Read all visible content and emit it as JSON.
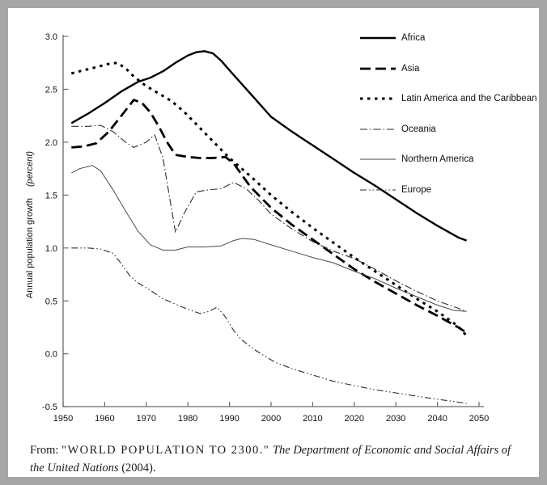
{
  "frame": {
    "border_color": "#a6a6a6",
    "background": "#ffffff"
  },
  "y_axis_title": {
    "main": "Annual population growth",
    "unit": "(percent)"
  },
  "footer": {
    "from_label": "From:",
    "title": "\"WORLD POPULATION TO 2300.\"",
    "source": "The Department of Economic and Social Affairs of the United Nations",
    "year": "(2004)."
  },
  "chart_data": {
    "type": "line",
    "title": "",
    "xlabel": "",
    "ylabel": "Annual population growth (percent)",
    "xlim": [
      1950,
      2050
    ],
    "ylim": [
      -0.5,
      3.0
    ],
    "x_ticks": [
      1950,
      1960,
      1970,
      1980,
      1990,
      2000,
      2010,
      2020,
      2030,
      2040,
      2050
    ],
    "y_ticks": [
      3.0,
      2.5,
      2.0,
      1.5,
      1.0,
      0.5,
      0.0,
      -0.5
    ],
    "grid": false,
    "legend_position": "top-right",
    "axis_color": "#6b6b6b",
    "series": [
      {
        "name": "Africa",
        "color": "#000000",
        "width": 2.4,
        "dash": "",
        "points": [
          [
            1952,
            2.18
          ],
          [
            1956,
            2.27
          ],
          [
            1960,
            2.37
          ],
          [
            1964,
            2.48
          ],
          [
            1968,
            2.57
          ],
          [
            1971,
            2.61
          ],
          [
            1974,
            2.67
          ],
          [
            1977,
            2.75
          ],
          [
            1980,
            2.82
          ],
          [
            1982,
            2.85
          ],
          [
            1984,
            2.86
          ],
          [
            1986,
            2.84
          ],
          [
            1988,
            2.77
          ],
          [
            1990,
            2.68
          ],
          [
            1995,
            2.46
          ],
          [
            2000,
            2.24
          ],
          [
            2005,
            2.1
          ],
          [
            2010,
            1.97
          ],
          [
            2015,
            1.84
          ],
          [
            2020,
            1.71
          ],
          [
            2025,
            1.59
          ],
          [
            2030,
            1.46
          ],
          [
            2035,
            1.33
          ],
          [
            2040,
            1.21
          ],
          [
            2045,
            1.1
          ],
          [
            2047,
            1.07
          ]
        ]
      },
      {
        "name": "Asia",
        "color": "#000000",
        "width": 2.8,
        "dash": "13 6",
        "points": [
          [
            1952,
            1.95
          ],
          [
            1955,
            1.96
          ],
          [
            1958,
            1.99
          ],
          [
            1961,
            2.1
          ],
          [
            1964,
            2.25
          ],
          [
            1967,
            2.4
          ],
          [
            1969,
            2.37
          ],
          [
            1971,
            2.28
          ],
          [
            1973,
            2.15
          ],
          [
            1975,
            2.0
          ],
          [
            1977,
            1.88
          ],
          [
            1980,
            1.86
          ],
          [
            1983,
            1.85
          ],
          [
            1986,
            1.85
          ],
          [
            1989,
            1.86
          ],
          [
            1991,
            1.8
          ],
          [
            1995,
            1.58
          ],
          [
            2000,
            1.38
          ],
          [
            2005,
            1.22
          ],
          [
            2010,
            1.08
          ],
          [
            2015,
            0.94
          ],
          [
            2020,
            0.8
          ],
          [
            2025,
            0.68
          ],
          [
            2030,
            0.57
          ],
          [
            2035,
            0.46
          ],
          [
            2040,
            0.36
          ],
          [
            2045,
            0.25
          ],
          [
            2047,
            0.2
          ]
        ]
      },
      {
        "name": "Latin America and the Caribbean",
        "color": "#000000",
        "width": 3,
        "dash": "3.5 5.5",
        "points": [
          [
            1952,
            2.65
          ],
          [
            1955,
            2.68
          ],
          [
            1958,
            2.71
          ],
          [
            1961,
            2.74
          ],
          [
            1963,
            2.75
          ],
          [
            1965,
            2.7
          ],
          [
            1967,
            2.62
          ],
          [
            1970,
            2.53
          ],
          [
            1973,
            2.46
          ],
          [
            1976,
            2.39
          ],
          [
            1979,
            2.29
          ],
          [
            1982,
            2.17
          ],
          [
            1985,
            2.05
          ],
          [
            1988,
            1.93
          ],
          [
            1990,
            1.85
          ],
          [
            1995,
            1.68
          ],
          [
            2000,
            1.5
          ],
          [
            2005,
            1.34
          ],
          [
            2010,
            1.19
          ],
          [
            2015,
            1.05
          ],
          [
            2020,
            0.91
          ],
          [
            2025,
            0.78
          ],
          [
            2030,
            0.65
          ],
          [
            2035,
            0.52
          ],
          [
            2040,
            0.4
          ],
          [
            2045,
            0.26
          ],
          [
            2047,
            0.17
          ]
        ]
      },
      {
        "name": "Oceania",
        "color": "#2b2b2b",
        "width": 1.1,
        "dash": "9 3 1.5 3",
        "points": [
          [
            1952,
            2.15
          ],
          [
            1956,
            2.15
          ],
          [
            1959,
            2.16
          ],
          [
            1962,
            2.1
          ],
          [
            1965,
            2.0
          ],
          [
            1967,
            1.95
          ],
          [
            1970,
            2.0
          ],
          [
            1972,
            2.07
          ],
          [
            1974,
            1.85
          ],
          [
            1977,
            1.15
          ],
          [
            1979,
            1.32
          ],
          [
            1982,
            1.53
          ],
          [
            1985,
            1.55
          ],
          [
            1988,
            1.56
          ],
          [
            1991,
            1.62
          ],
          [
            1994,
            1.56
          ],
          [
            1997,
            1.45
          ],
          [
            2000,
            1.32
          ],
          [
            2005,
            1.18
          ],
          [
            2010,
            1.06
          ],
          [
            2015,
            0.97
          ],
          [
            2020,
            0.9
          ],
          [
            2025,
            0.8
          ],
          [
            2030,
            0.69
          ],
          [
            2035,
            0.59
          ],
          [
            2040,
            0.5
          ],
          [
            2045,
            0.43
          ],
          [
            2047,
            0.4
          ]
        ]
      },
      {
        "name": "Northern America",
        "color": "#4a4a4a",
        "width": 1,
        "dash": "",
        "points": [
          [
            1952,
            1.71
          ],
          [
            1954,
            1.75
          ],
          [
            1957,
            1.78
          ],
          [
            1959,
            1.73
          ],
          [
            1962,
            1.55
          ],
          [
            1965,
            1.35
          ],
          [
            1968,
            1.16
          ],
          [
            1971,
            1.03
          ],
          [
            1974,
            0.98
          ],
          [
            1977,
            0.98
          ],
          [
            1980,
            1.01
          ],
          [
            1984,
            1.01
          ],
          [
            1988,
            1.02
          ],
          [
            1991,
            1.07
          ],
          [
            1993,
            1.09
          ],
          [
            1996,
            1.08
          ],
          [
            2000,
            1.03
          ],
          [
            2005,
            0.97
          ],
          [
            2010,
            0.91
          ],
          [
            2015,
            0.86
          ],
          [
            2020,
            0.78
          ],
          [
            2025,
            0.71
          ],
          [
            2030,
            0.62
          ],
          [
            2035,
            0.54
          ],
          [
            2040,
            0.46
          ],
          [
            2044,
            0.41
          ],
          [
            2047,
            0.4
          ]
        ]
      },
      {
        "name": "Europe",
        "color": "#2b2b2b",
        "width": 1.1,
        "dash": "8 3 1.5 3 1.5 3",
        "points": [
          [
            1952,
            1.0
          ],
          [
            1956,
            1.0
          ],
          [
            1959,
            0.99
          ],
          [
            1962,
            0.95
          ],
          [
            1964,
            0.85
          ],
          [
            1966,
            0.74
          ],
          [
            1968,
            0.67
          ],
          [
            1971,
            0.6
          ],
          [
            1974,
            0.52
          ],
          [
            1977,
            0.47
          ],
          [
            1980,
            0.42
          ],
          [
            1983,
            0.38
          ],
          [
            1985,
            0.4
          ],
          [
            1987,
            0.44
          ],
          [
            1989,
            0.35
          ],
          [
            1991,
            0.22
          ],
          [
            1993,
            0.13
          ],
          [
            1996,
            0.04
          ],
          [
            1998,
            -0.01
          ],
          [
            2001,
            -0.08
          ],
          [
            2005,
            -0.14
          ],
          [
            2010,
            -0.2
          ],
          [
            2015,
            -0.26
          ],
          [
            2020,
            -0.3
          ],
          [
            2025,
            -0.34
          ],
          [
            2030,
            -0.37
          ],
          [
            2035,
            -0.4
          ],
          [
            2040,
            -0.43
          ],
          [
            2044,
            -0.45
          ],
          [
            2047,
            -0.47
          ]
        ]
      }
    ]
  }
}
